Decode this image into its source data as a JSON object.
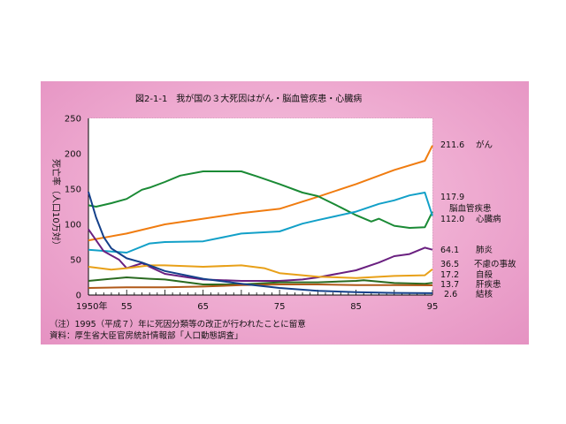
{
  "chart_data": {
    "type": "line",
    "title": "図2-1-1　我が国の３大死因はがん・脳血管疾患・心臓病",
    "ylabel": "死亡率（人口10万対）",
    "xlabel": "",
    "xlim": [
      1950,
      1995
    ],
    "ylim": [
      0,
      250
    ],
    "yticks": [
      0,
      50,
      100,
      150,
      200,
      250
    ],
    "xticks": [
      {
        "value": 1950,
        "label": "1950年"
      },
      {
        "value": 1955,
        "label": "55"
      },
      {
        "value": 1965,
        "label": "65"
      },
      {
        "value": 1975,
        "label": "75"
      },
      {
        "value": 1985,
        "label": "85"
      },
      {
        "value": 1995,
        "label": "95"
      }
    ],
    "grid": true,
    "legend": "right-end labels",
    "series": [
      {
        "name": "がん",
        "value_label": "211.6",
        "color": "#f07c10",
        "x": [
          1950,
          1955,
          1960,
          1965,
          1970,
          1975,
          1980,
          1985,
          1990,
          1994,
          1995
        ],
        "y": [
          77.4,
          87,
          100,
          108,
          116,
          122,
          139,
          157,
          177,
          190,
          211.6
        ]
      },
      {
        "name": "脳血管疾患",
        "value_label": "117.9",
        "color": "#1a8a35",
        "x": [
          1950,
          1951,
          1953,
          1955,
          1957,
          1958,
          1960,
          1962,
          1965,
          1970,
          1972,
          1975,
          1978,
          1980,
          1983,
          1985,
          1987,
          1988,
          1990,
          1992,
          1994,
          1995
        ],
        "y": [
          127,
          125,
          130,
          136,
          149,
          152,
          160,
          169,
          175,
          175,
          168,
          157,
          145,
          140,
          124,
          113,
          104,
          108,
          98,
          95,
          96,
          117.9
        ]
      },
      {
        "name": "心臓病",
        "value_label": "112.0",
        "color": "#12a0c8",
        "x": [
          1950,
          1955,
          1958,
          1960,
          1965,
          1970,
          1975,
          1978,
          1980,
          1985,
          1988,
          1990,
          1992,
          1994,
          1995
        ],
        "y": [
          64,
          60,
          73,
          75,
          76,
          87,
          90,
          101,
          106,
          118,
          129,
          134,
          141,
          145,
          112.0
        ]
      },
      {
        "name": "肺炎",
        "value_label": "64.1",
        "color": "#6a2080",
        "x": [
          1950,
          1952,
          1954,
          1955,
          1957,
          1960,
          1963,
          1965,
          1970,
          1975,
          1978,
          1980,
          1985,
          1988,
          1990,
          1992,
          1994,
          1995
        ],
        "y": [
          93,
          62,
          50,
          38,
          45,
          30,
          25,
          22,
          20,
          20,
          22,
          25,
          35,
          46,
          55,
          58,
          67,
          64.1
        ]
      },
      {
        "name": "不慮の事故",
        "value_label": "36.5",
        "color": "#e8a018",
        "x": [
          1950,
          1953,
          1955,
          1958,
          1960,
          1965,
          1970,
          1973,
          1975,
          1980,
          1985,
          1990,
          1994,
          1995
        ],
        "y": [
          40,
          36,
          38,
          42,
          42,
          40,
          42,
          38,
          31,
          26,
          24,
          27,
          28,
          36.5
        ]
      },
      {
        "name": "自殺",
        "value_label": "17.2",
        "color": "#2a6a20",
        "x": [
          1950,
          1955,
          1958,
          1960,
          1965,
          1970,
          1975,
          1980,
          1985,
          1986,
          1990,
          1994,
          1995
        ],
        "y": [
          20,
          25,
          23,
          22,
          15,
          15,
          18,
          18,
          20,
          21,
          17,
          16,
          17.2
        ]
      },
      {
        "name": "肝疾患",
        "value_label": "13.7",
        "color": "#b05818",
        "x": [
          1950,
          1955,
          1960,
          1965,
          1970,
          1975,
          1980,
          1985,
          1990,
          1995
        ],
        "y": [
          10,
          11,
          11,
          12,
          14,
          15,
          15,
          14,
          14,
          13.7
        ]
      },
      {
        "name": "結核",
        "value_label": "2.6",
        "color": "#14408a",
        "x": [
          1950,
          1951,
          1952,
          1953,
          1955,
          1957,
          1960,
          1965,
          1970,
          1975,
          1980,
          1985,
          1990,
          1995
        ],
        "y": [
          146,
          110,
          82,
          66,
          52,
          46,
          34,
          23,
          16,
          10,
          6,
          4,
          3,
          2.6
        ]
      }
    ],
    "notes": [
      "（注）1995（平成７）年に死因分類等の改正が行われたことに留意",
      "資料：厚生省大臣官房統計情報部「人口動態調査」"
    ]
  }
}
